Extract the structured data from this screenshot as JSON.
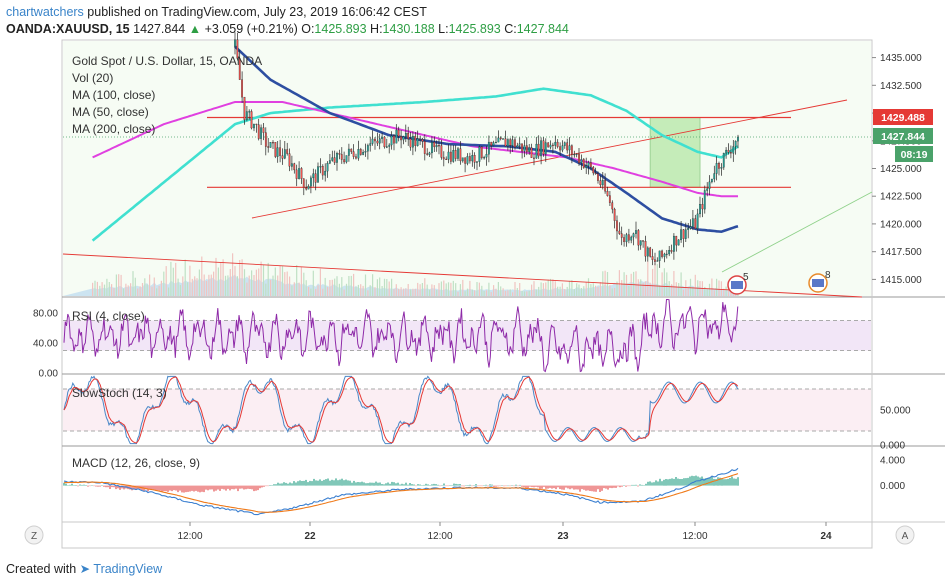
{
  "header": {
    "author": "chartwatchers",
    "published_text": "published on TradingView.com, July 23, 2019 16:06:42 CEST",
    "symbol": "OANDA:XAUUSD, 15",
    "last": "1427.844",
    "change": "+3.059 (+0.21%)",
    "o_label": "O:",
    "o_value": "1425.893",
    "h_label": "H:",
    "h_value": "1430.188",
    "l_label": "L:",
    "l_value": "1425.893",
    "c_label": "C:",
    "c_value": "1427.844"
  },
  "legend": {
    "main_title": "Gold Spot / U.S. Dollar, 15, OANDA",
    "vol": "Vol (20)",
    "ma100": "MA (100, close)",
    "ma50": "MA (50, close)",
    "ma200": "MA (200, close)",
    "rsi": "RSI (4, close)",
    "stoch": "SlowStoch (14, 3)",
    "macd": "MACD (12, 26, close, 9)"
  },
  "price_badges": {
    "red_level": "1429.488",
    "last_price": "1427.844",
    "countdown": "08:19"
  },
  "events": {
    "event_a": "5",
    "event_b": "8"
  },
  "axis_buttons": {
    "left": "Z",
    "right": "A"
  },
  "colors": {
    "up": "#26a69a",
    "down": "#ef5350",
    "ma50": "#2d4ea1",
    "ma100": "#e040e0",
    "ma200": "#40e0d0",
    "resistance": "#e53935",
    "box_fill": "#9ee08a",
    "rsi_line": "#8e2aa8",
    "stoch_k": "#4a88c8",
    "stoch_d": "#e53935"
  },
  "chart_data": [
    {
      "type": "candlestick",
      "title": "Gold Spot / U.S. Dollar, 15, OANDA",
      "x_ticks": [
        "12:00",
        "22",
        "12:00",
        "23",
        "12:00",
        "24"
      ],
      "y_ticks": [
        "1435.000",
        "1432.500",
        "1430.000",
        "1427.500",
        "1425.000",
        "1422.500",
        "1420.000",
        "1417.500",
        "1415.000"
      ],
      "ylim": [
        1413.5,
        1436.5
      ],
      "price_anchors": [
        [
          0,
          1436.0
        ],
        [
          4,
          1430.0
        ],
        [
          8,
          1429.0
        ],
        [
          14,
          1427.0
        ],
        [
          22,
          1426.0
        ],
        [
          30,
          1423.5
        ],
        [
          40,
          1425.5
        ],
        [
          55,
          1427.0
        ],
        [
          70,
          1428.0
        ],
        [
          85,
          1426.5
        ],
        [
          100,
          1426.0
        ],
        [
          115,
          1427.5
        ],
        [
          125,
          1426.5
        ],
        [
          135,
          1427.5
        ],
        [
          145,
          1426.0
        ],
        [
          152,
          1424.5
        ],
        [
          158,
          1422.0
        ],
        [
          163,
          1418.5
        ],
        [
          168,
          1419.5
        ],
        [
          172,
          1418.0
        ],
        [
          176,
          1416.5
        ],
        [
          180,
          1417.0
        ],
        [
          185,
          1418.5
        ],
        [
          190,
          1419.5
        ],
        [
          194,
          1420.0
        ],
        [
          198,
          1422.5
        ],
        [
          202,
          1425.0
        ],
        [
          206,
          1426.0
        ],
        [
          212,
          1427.8
        ]
      ],
      "ma50_anchors": [
        [
          0,
          1436.0
        ],
        [
          15,
          1433.0
        ],
        [
          40,
          1430.0
        ],
        [
          65,
          1428.0
        ],
        [
          90,
          1427.2
        ],
        [
          115,
          1427.0
        ],
        [
          135,
          1426.5
        ],
        [
          150,
          1425.0
        ],
        [
          165,
          1422.8
        ],
        [
          180,
          1420.5
        ],
        [
          195,
          1419.5
        ],
        [
          205,
          1419.3
        ],
        [
          212,
          1419.8
        ]
      ],
      "ma100_anchors": [
        [
          -60,
          1426.0
        ],
        [
          -30,
          1429.0
        ],
        [
          0,
          1431.0
        ],
        [
          20,
          1431.0
        ],
        [
          40,
          1430.0
        ],
        [
          60,
          1429.0
        ],
        [
          80,
          1428.0
        ],
        [
          100,
          1427.0
        ],
        [
          120,
          1426.5
        ],
        [
          140,
          1426.0
        ],
        [
          160,
          1425.0
        ],
        [
          180,
          1423.8
        ],
        [
          195,
          1422.8
        ],
        [
          205,
          1422.5
        ],
        [
          212,
          1422.5
        ]
      ],
      "ma200_anchors": [
        [
          -60,
          1418.5
        ],
        [
          -40,
          1422.0
        ],
        [
          -20,
          1425.5
        ],
        [
          0,
          1429.0
        ],
        [
          15,
          1430.0
        ],
        [
          40,
          1430.5
        ],
        [
          80,
          1431.0
        ],
        [
          110,
          1431.5
        ],
        [
          130,
          1432.2
        ],
        [
          150,
          1431.6
        ],
        [
          165,
          1430.2
        ],
        [
          180,
          1428.0
        ],
        [
          195,
          1426.5
        ],
        [
          205,
          1426.0
        ],
        [
          212,
          1427.0
        ]
      ],
      "volume_anchors": [
        [
          -60,
          0.4
        ],
        [
          -40,
          0.55
        ],
        [
          -20,
          0.8
        ],
        [
          0,
          1.0
        ],
        [
          30,
          0.6
        ],
        [
          60,
          0.45
        ],
        [
          90,
          0.35
        ],
        [
          120,
          0.3
        ],
        [
          150,
          0.45
        ],
        [
          170,
          0.8
        ],
        [
          190,
          0.5
        ],
        [
          212,
          0.3
        ]
      ],
      "annotations": {
        "resistance": 1429.6,
        "support": 1423.3,
        "box": {
          "from_bar": 175,
          "to_bar": 196,
          "low": 1423.3,
          "high": 1429.6
        }
      }
    },
    {
      "type": "line",
      "title": "RSI (4, close)",
      "y_ticks": [
        "80.00",
        "40.00",
        "0.00"
      ],
      "ylim": [
        0,
        100
      ],
      "bands": [
        70,
        30
      ]
    },
    {
      "type": "line",
      "title": "SlowStoch (14, 3)",
      "y_ticks": [
        "50.000",
        "0.000"
      ],
      "ylim": [
        0,
        100
      ],
      "bands": [
        80,
        20
      ]
    },
    {
      "type": "bar",
      "title": "MACD (12, 26, close, 9)",
      "y_ticks": [
        "4.000",
        "0.000"
      ],
      "ylim": [
        -5.5,
        6
      ]
    }
  ]
}
